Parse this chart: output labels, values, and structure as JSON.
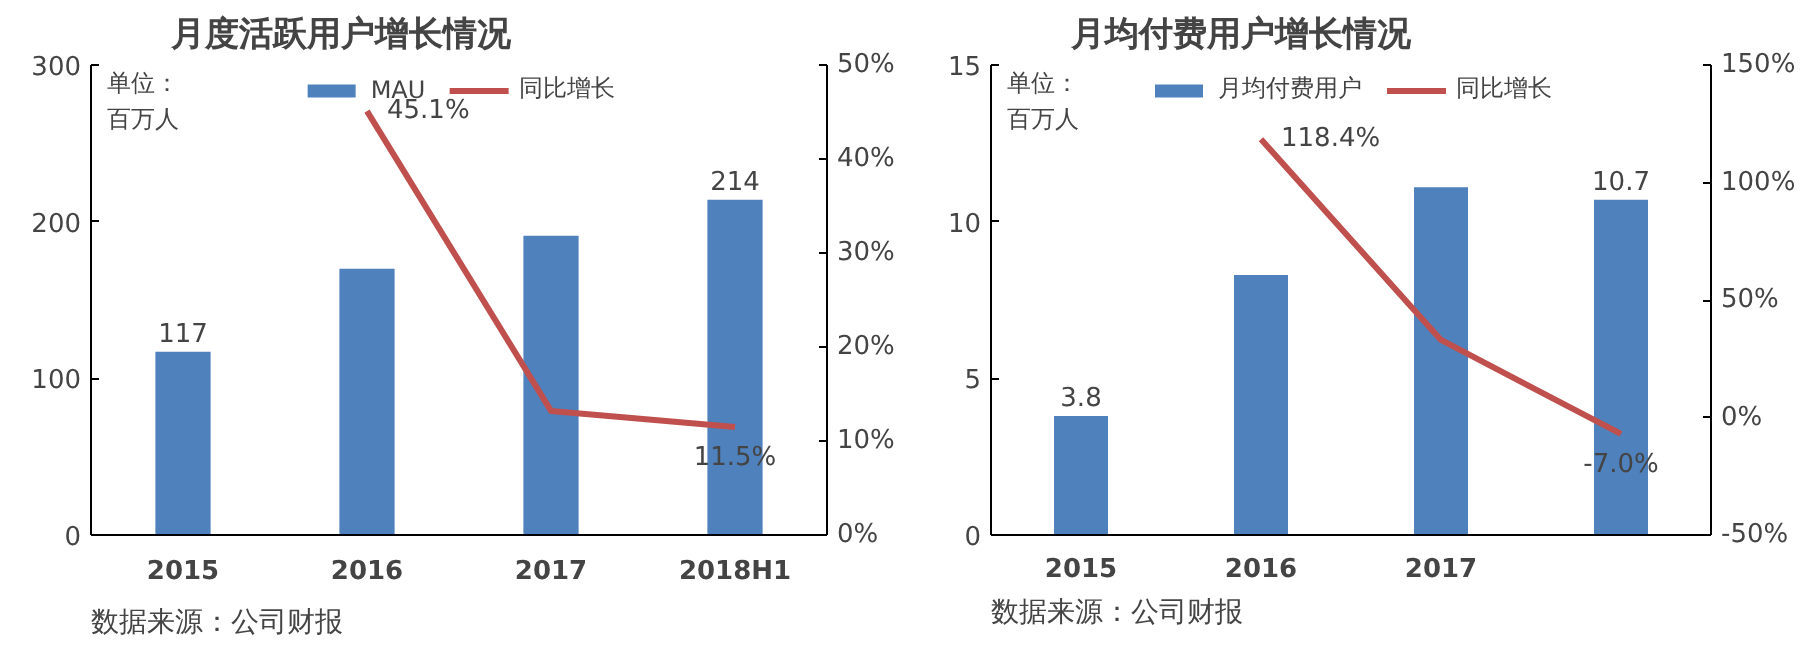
{
  "chart_data": [
    {
      "type": "bar",
      "title": "月度活跃用户增长情况",
      "categories": [
        "2015",
        "2016",
        "2017",
        "2018H1"
      ],
      "series": [
        {
          "name": "MAU",
          "color": "#4f81bd",
          "values": [
            117,
            170,
            191,
            214
          ],
          "value_labels": [
            "117",
            null,
            null,
            "214"
          ]
        },
        {
          "name": "同比增长",
          "type": "line",
          "axis": "y2",
          "color": "#c0504d",
          "values": [
            null,
            45.1,
            13.2,
            11.5
          ],
          "value_labels": [
            null,
            "45.1%",
            null,
            "11.5%"
          ]
        }
      ],
      "ylim": [
        0,
        300
      ],
      "yticks": [
        0,
        100,
        200,
        300
      ],
      "y2lim": [
        0,
        50
      ],
      "y2ticks": [
        {
          "value": 0,
          "label": "0%"
        },
        {
          "value": 10,
          "label": "10%"
        },
        {
          "value": 20,
          "label": "20%"
        },
        {
          "value": 30,
          "label": "30%"
        },
        {
          "value": 40,
          "label": "40%"
        },
        {
          "value": 50,
          "label": "50%"
        }
      ],
      "legend": "top",
      "grid": false,
      "annotations": [
        "单位：",
        "百万人",
        "数据来源：公司财报"
      ]
    },
    {
      "type": "bar",
      "title": "月均付费用户增长情况",
      "categories": [
        "2015",
        "2016",
        "2017",
        null
      ],
      "series": [
        {
          "name": "月均付费用户",
          "color": "#4f81bd",
          "values": [
            3.8,
            8.3,
            11.1,
            10.7
          ],
          "value_labels": [
            "3.8",
            null,
            null,
            "10.7"
          ]
        },
        {
          "name": "同比增长",
          "type": "line",
          "axis": "y2",
          "color": "#c0504d",
          "values": [
            null,
            118.4,
            33,
            -7.0
          ],
          "value_labels": [
            null,
            "118.4%",
            null,
            "-7.0%"
          ]
        }
      ],
      "ylim": [
        0,
        15
      ],
      "yticks": [
        0,
        5,
        10,
        15
      ],
      "y2lim": [
        -50,
        150
      ],
      "y2ticks": [
        {
          "value": -50,
          "label": "-50%"
        },
        {
          "value": 0,
          "label": "0%"
        },
        {
          "value": 50,
          "label": "50%"
        },
        {
          "value": 100,
          "label": "100%"
        },
        {
          "value": 150,
          "label": "150%"
        }
      ],
      "legend": "top",
      "grid": false,
      "annotations": [
        "单位：",
        "百万人",
        "数据来源：公司财报"
      ]
    }
  ]
}
